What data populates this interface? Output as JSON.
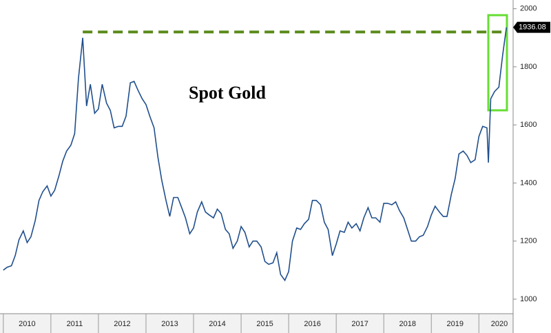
{
  "chart_data": {
    "type": "line",
    "title": "Spot Gold",
    "x": [
      2010.0,
      2010.08,
      2010.17,
      2010.25,
      2010.33,
      2010.42,
      2010.5,
      2010.58,
      2010.67,
      2010.75,
      2010.83,
      2010.92,
      2011.0,
      2011.08,
      2011.17,
      2011.25,
      2011.33,
      2011.42,
      2011.5,
      2011.58,
      2011.67,
      2011.75,
      2011.83,
      2011.92,
      2012.0,
      2012.08,
      2012.17,
      2012.25,
      2012.33,
      2012.42,
      2012.5,
      2012.58,
      2012.67,
      2012.75,
      2012.83,
      2012.92,
      2013.0,
      2013.08,
      2013.17,
      2013.25,
      2013.33,
      2013.42,
      2013.5,
      2013.58,
      2013.67,
      2013.75,
      2013.83,
      2013.92,
      2014.0,
      2014.08,
      2014.17,
      2014.25,
      2014.33,
      2014.42,
      2014.5,
      2014.58,
      2014.67,
      2014.75,
      2014.83,
      2014.92,
      2015.0,
      2015.08,
      2015.17,
      2015.25,
      2015.33,
      2015.42,
      2015.5,
      2015.58,
      2015.67,
      2015.75,
      2015.83,
      2015.92,
      2016.0,
      2016.08,
      2016.17,
      2016.25,
      2016.33,
      2016.42,
      2016.5,
      2016.58,
      2016.67,
      2016.75,
      2016.83,
      2016.92,
      2017.0,
      2017.08,
      2017.17,
      2017.25,
      2017.33,
      2017.42,
      2017.5,
      2017.58,
      2017.67,
      2017.75,
      2017.83,
      2017.92,
      2018.0,
      2018.08,
      2018.17,
      2018.25,
      2018.33,
      2018.42,
      2018.5,
      2018.58,
      2018.67,
      2018.75,
      2018.83,
      2018.92,
      2019.0,
      2019.08,
      2019.17,
      2019.25,
      2019.33,
      2019.42,
      2019.5,
      2019.58,
      2019.67,
      2019.75,
      2019.83,
      2019.92,
      2020.0,
      2020.08,
      2020.17,
      2020.2,
      2020.25,
      2020.33,
      2020.42,
      2020.5,
      2020.58
    ],
    "series": [
      {
        "name": "Spot Gold",
        "color": "#1f4e8c",
        "values": [
          1100,
          1110,
          1115,
          1150,
          1205,
          1235,
          1195,
          1215,
          1270,
          1340,
          1370,
          1390,
          1355,
          1375,
          1425,
          1475,
          1510,
          1530,
          1570,
          1760,
          1900,
          1665,
          1740,
          1640,
          1655,
          1740,
          1675,
          1650,
          1590,
          1595,
          1595,
          1630,
          1745,
          1750,
          1720,
          1690,
          1670,
          1630,
          1590,
          1490,
          1410,
          1340,
          1285,
          1350,
          1350,
          1315,
          1280,
          1225,
          1245,
          1300,
          1335,
          1300,
          1290,
          1280,
          1310,
          1295,
          1240,
          1225,
          1175,
          1200,
          1250,
          1230,
          1180,
          1200,
          1200,
          1180,
          1130,
          1120,
          1125,
          1160,
          1085,
          1065,
          1095,
          1200,
          1245,
          1240,
          1260,
          1275,
          1340,
          1340,
          1325,
          1265,
          1240,
          1150,
          1190,
          1235,
          1230,
          1265,
          1245,
          1260,
          1235,
          1280,
          1315,
          1280,
          1280,
          1265,
          1330,
          1330,
          1325,
          1335,
          1305,
          1280,
          1240,
          1200,
          1200,
          1215,
          1220,
          1250,
          1290,
          1320,
          1300,
          1285,
          1285,
          1360,
          1415,
          1500,
          1510,
          1495,
          1470,
          1480,
          1560,
          1595,
          1590,
          1470,
          1690,
          1715,
          1730,
          1840,
          1936.08
        ]
      }
    ],
    "xlim": [
      2009.93,
      2020.72
    ],
    "xticks": [
      2010,
      2011,
      2012,
      2013,
      2014,
      2015,
      2016,
      2017,
      2018,
      2019,
      2020
    ],
    "ylim": [
      950,
      2030
    ],
    "yticks": [
      1000,
      1200,
      1400,
      1600,
      1800,
      2000
    ],
    "reference_line": 1920,
    "reference_color": "#5a8a1a"
  }
}
